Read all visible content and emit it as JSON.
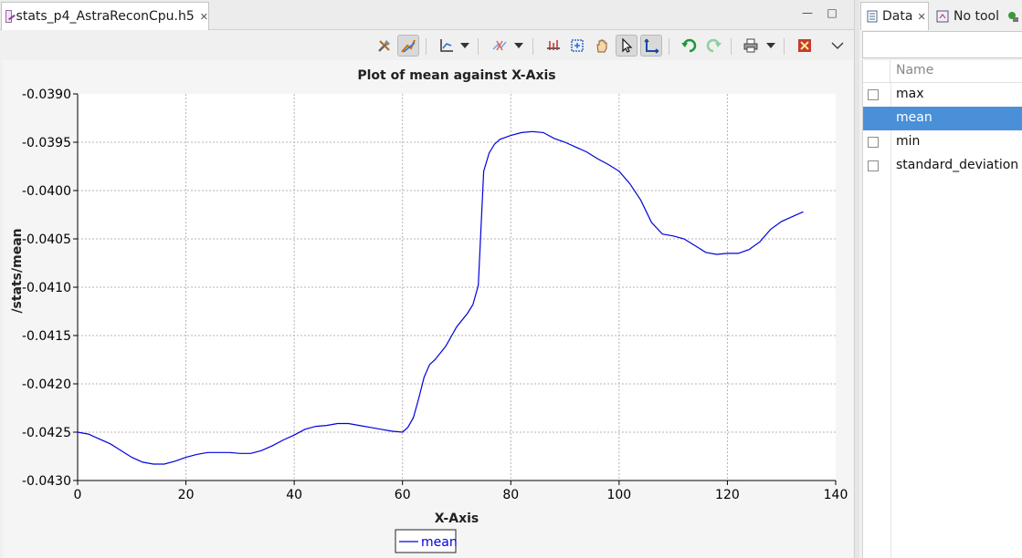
{
  "editor": {
    "tab_title": "stats_p4_AstraReconCpu.h5",
    "minimize_symbol": "—",
    "maximize_symbol": "□"
  },
  "toolbar": {
    "icons": [
      "configure-icon",
      "plot-tool-icon",
      "axes-icon",
      "trace-icon",
      "annotation-icon",
      "zoom-box-icon",
      "pan-icon",
      "select-cursor-icon",
      "axes-select-icon",
      "undo-icon",
      "redo-icon",
      "print-icon",
      "reset-icon",
      "view-menu-icon"
    ]
  },
  "view": {
    "tabs": [
      {
        "label": "Data",
        "active": true
      },
      {
        "label": "No tool",
        "active": false
      }
    ],
    "filter_placeholder": "",
    "column_header": "Name",
    "rows": [
      {
        "label": "max",
        "checked": false,
        "selected": false
      },
      {
        "label": "mean",
        "checked": false,
        "selected": true
      },
      {
        "label": "min",
        "checked": false,
        "selected": false
      },
      {
        "label": "standard_deviation",
        "checked": false,
        "selected": false
      }
    ]
  },
  "colors": {
    "series": "#0000dd",
    "selection": "#4a90d9",
    "grid": "#b4b4b4"
  },
  "chart_data": {
    "type": "line",
    "title": "Plot of mean against X-Axis",
    "xlabel": "X-Axis",
    "ylabel": "/stats/mean",
    "xlim": [
      0,
      140
    ],
    "ylim": [
      -0.043,
      -0.039
    ],
    "xticks": [
      0,
      20,
      40,
      60,
      80,
      100,
      120,
      140
    ],
    "xtick_labels": [
      "0",
      "20",
      "40",
      "60",
      "80",
      "100",
      "120",
      "140"
    ],
    "yticks": [
      -0.039,
      -0.0395,
      -0.04,
      -0.0405,
      -0.041,
      -0.0415,
      -0.042,
      -0.0425,
      -0.043
    ],
    "ytick_labels": [
      "-0.0390",
      "-0.0395",
      "-0.0400",
      "-0.0405",
      "-0.0410",
      "-0.0415",
      "-0.0420",
      "-0.0425",
      "-0.0430"
    ],
    "grid": true,
    "legend": "bottom-center",
    "series": [
      {
        "name": "mean",
        "x": [
          0,
          2,
          4,
          6,
          8,
          10,
          12,
          14,
          16,
          18,
          20,
          22,
          24,
          26,
          28,
          30,
          32,
          34,
          36,
          38,
          40,
          42,
          44,
          46,
          48,
          50,
          52,
          54,
          56,
          58,
          60,
          61,
          62,
          63,
          64,
          65,
          66,
          68,
          70,
          72,
          73,
          74,
          75,
          76,
          77,
          78,
          80,
          82,
          84,
          86,
          88,
          90,
          92,
          94,
          96,
          98,
          100,
          102,
          104,
          106,
          108,
          110,
          112,
          114,
          116,
          118,
          120,
          122,
          124,
          126,
          128,
          130,
          132,
          134
        ],
        "y": [
          -0.0425,
          -0.04252,
          -0.04257,
          -0.04262,
          -0.04269,
          -0.04276,
          -0.04281,
          -0.04283,
          -0.04283,
          -0.0428,
          -0.04276,
          -0.04273,
          -0.04271,
          -0.04271,
          -0.04271,
          -0.04272,
          -0.04272,
          -0.04269,
          -0.04264,
          -0.04258,
          -0.04253,
          -0.04247,
          -0.04244,
          -0.04243,
          -0.04241,
          -0.04241,
          -0.04243,
          -0.04245,
          -0.04247,
          -0.04249,
          -0.0425,
          -0.04245,
          -0.04235,
          -0.04215,
          -0.04193,
          -0.0418,
          -0.04175,
          -0.04161,
          -0.04141,
          -0.04127,
          -0.04118,
          -0.04098,
          -0.0398,
          -0.03961,
          -0.03952,
          -0.03947,
          -0.03943,
          -0.0394,
          -0.03939,
          -0.0394,
          -0.03946,
          -0.0395,
          -0.03955,
          -0.0396,
          -0.03967,
          -0.03973,
          -0.0398,
          -0.03993,
          -0.0401,
          -0.04033,
          -0.04045,
          -0.04047,
          -0.0405,
          -0.04057,
          -0.04064,
          -0.04066,
          -0.04065,
          -0.04065,
          -0.04061,
          -0.04053,
          -0.0404,
          -0.04032,
          -0.04027,
          -0.04022
        ]
      }
    ]
  }
}
